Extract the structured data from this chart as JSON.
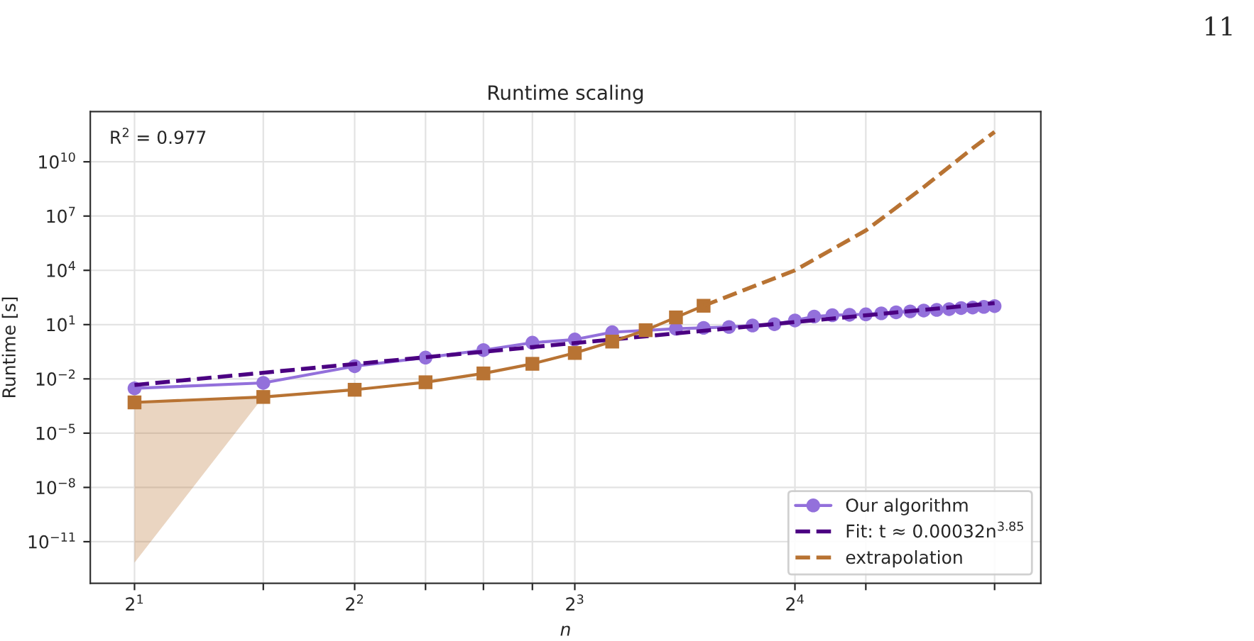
{
  "chart_data": {
    "type": "line",
    "title": "Runtime scaling",
    "xlabel": "n",
    "ylabel": "Runtime [s]",
    "log": "xy",
    "grid": true,
    "legend": "bottom right",
    "xlim": [
      1.74,
      34.7
    ],
    "ylim": [
      5e-14,
      6000000000000.0
    ],
    "xticks": [
      {
        "value": 2,
        "label": "2$^{1}$"
      },
      {
        "value": 3,
        "label": null
      },
      {
        "value": 4,
        "label": "2$^{2}$"
      },
      {
        "value": 5,
        "label": null
      },
      {
        "value": 6,
        "label": null
      },
      {
        "value": 7,
        "label": null
      },
      {
        "value": 8,
        "label": "2$^{3}$"
      },
      {
        "value": 16,
        "label": "2$^{4}$"
      },
      {
        "value": 20,
        "label": null
      },
      {
        "value": 30,
        "label": null
      }
    ],
    "yticks": [
      {
        "value": 1e-11,
        "label": "10$^{−11}$"
      },
      {
        "value": 1e-08,
        "label": "10$^{−8}$"
      },
      {
        "value": 1e-05,
        "label": "10$^{−5}$"
      },
      {
        "value": 0.01,
        "label": "10$^{−2}$"
      },
      {
        "value": 10,
        "label": "10$^{1}$"
      },
      {
        "value": 10000,
        "label": "10$^{4}$"
      },
      {
        "value": 10000000.0,
        "label": "10$^{7}$"
      },
      {
        "value": 10000000000.0,
        "label": "10$^{10}$"
      }
    ],
    "annotations": [
      "R$^{2}$ = 0.977",
      "11"
    ],
    "series": [
      {
        "name": "Our algorithm",
        "color": "#9370db",
        "marker": "circle",
        "line_style": "solid",
        "x": [
          2,
          3,
          4,
          5,
          6,
          7,
          8,
          9,
          10,
          11,
          12,
          13,
          14,
          15,
          16,
          17,
          18,
          19,
          20,
          21,
          22,
          23,
          24,
          25,
          26,
          27,
          28,
          29,
          30
        ],
        "values": [
          0.003,
          0.006,
          0.05,
          0.15,
          0.39,
          1.0,
          1.5,
          3.8,
          null,
          5.9,
          6.6,
          7.4,
          8.9,
          10.5,
          17,
          28,
          33,
          35,
          37,
          42,
          48,
          54,
          60,
          65,
          72,
          82,
          88,
          95,
          105
        ]
      },
      {
        "name": "Fit: t ≈ 0.00032n$^{3.85}$",
        "color": "#4b0082",
        "marker": "none",
        "line_style": "dashed",
        "x": [
          2,
          30
        ],
        "values": [
          0.0046,
          155
        ]
      },
      {
        "color": "#b87333",
        "marker": "square",
        "line_style": "solid",
        "x": [
          2,
          3,
          4,
          5,
          6,
          7,
          8,
          9,
          10,
          11,
          12
        ],
        "values": [
          0.0005,
          0.001,
          0.0025,
          0.0065,
          0.02,
          0.068,
          0.27,
          1.15,
          4.9,
          25,
          110
        ],
        "lower": [
          7e-13,
          0.001,
          null,
          null,
          null,
          null,
          null,
          null,
          null,
          null,
          null
        ],
        "upper": [
          0.0005,
          0.001,
          null,
          null,
          null,
          null,
          null,
          null,
          null,
          null,
          null
        ]
      },
      {
        "name": "extrapolation",
        "color": "#b87333",
        "marker": "none",
        "line_style": "dashed",
        "x": [
          12,
          16,
          20,
          24,
          28,
          30
        ],
        "values": [
          110,
          10000,
          1600000,
          400000000,
          56000000000,
          450000000000
        ]
      }
    ]
  }
}
